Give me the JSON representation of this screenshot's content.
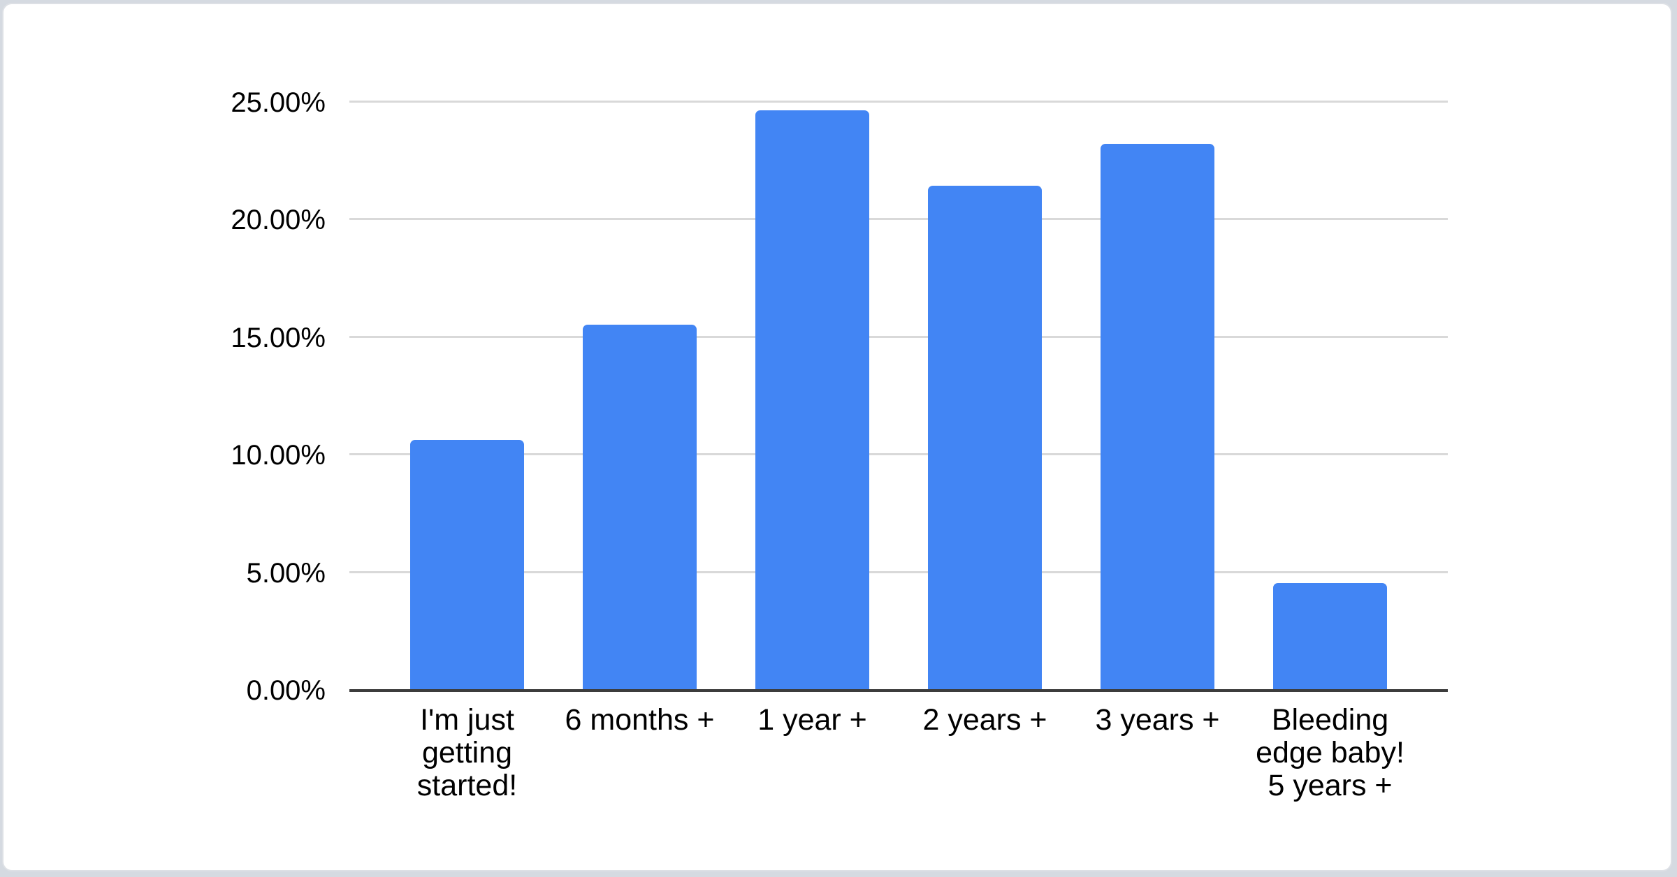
{
  "page": {
    "background_color": "#d5dae1",
    "card_background": "#ffffff",
    "card_border_color": "#dde0e5"
  },
  "chart_data": {
    "type": "bar",
    "title": "",
    "xlabel": "",
    "ylabel": "",
    "categories": [
      "I'm just getting started!",
      "6 months +",
      "1 year +",
      "2 years +",
      "3 years +",
      "Bleeding edge baby! 5 years +"
    ],
    "values": [
      10.6,
      15.5,
      24.6,
      21.4,
      23.2,
      4.5
    ],
    "value_unit": "%",
    "ylim": [
      0,
      25
    ],
    "y_tick_values": [
      0,
      5,
      10,
      15,
      20,
      25
    ],
    "y_tick_labels": [
      "0.00%",
      "5.00%",
      "10.00%",
      "15.00%",
      "20.00%",
      "25.00%"
    ],
    "grid": true,
    "legend_position": "none",
    "bar_color": "#4285f4",
    "gridline_color": "#d9d9d9",
    "baseline_color": "#3c3c3c",
    "axis_text_color": "#000000"
  }
}
